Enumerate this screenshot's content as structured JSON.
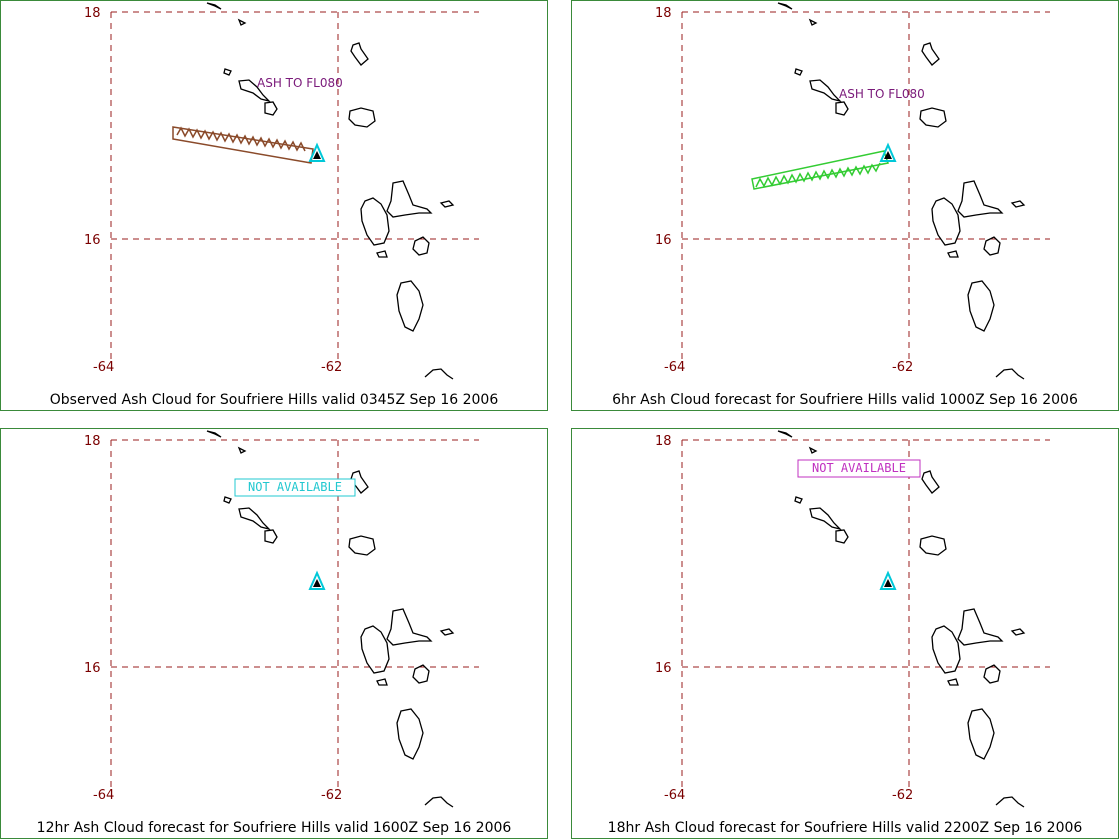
{
  "tick_labels": {
    "lat_top": "18",
    "lat_mid": "16",
    "lon_left": "-64",
    "lon_right": "-62"
  },
  "colors": {
    "grid": "#9a1c1c",
    "coast": "#000000",
    "volcano": "#00c8d8",
    "observed_ash": "#8a4a2a",
    "forecast_ash": "#33cc33",
    "na_12hr": "#22c8d0",
    "na_18hr": "#c030c0"
  },
  "panels": [
    {
      "caption": "Observed Ash Cloud for Soufriere  Hills valid 0345Z Sep 16 2006",
      "ash_label": "ASH TO FL080"
    },
    {
      "caption": "6hr Ash Cloud forecast for Soufriere  Hills valid 1000Z Sep 16 2006",
      "ash_label": "ASH TO FL080"
    },
    {
      "caption": "12hr Ash Cloud forecast for Soufriere  Hills valid 1600Z Sep 16 2006",
      "status": "NOT AVAILABLE"
    },
    {
      "caption": "18hr Ash Cloud forecast for Soufriere  Hills valid 2200Z Sep 16 2006",
      "status": "NOT AVAILABLE"
    }
  ]
}
